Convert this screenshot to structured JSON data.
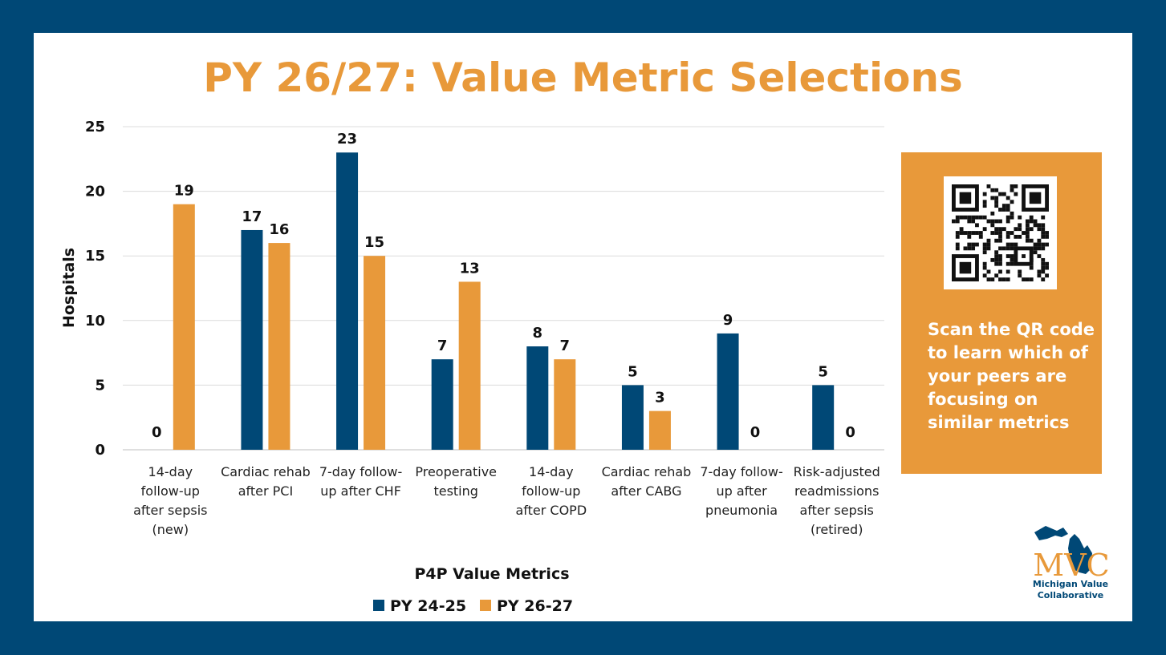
{
  "colors": {
    "background": "#004876",
    "accent": "#E8993A",
    "series_1": "#004876",
    "series_2": "#E8993A"
  },
  "chart_data": {
    "type": "bar",
    "title": "PY 26/27: Value Metric Selections",
    "xlabel": "P4P Value Metrics",
    "ylabel": "Hospitals",
    "ylim": [
      0,
      25
    ],
    "yticks": [
      0,
      5,
      10,
      15,
      20,
      25
    ],
    "grid": true,
    "legend_position": "bottom",
    "categories": [
      [
        "14-day",
        "follow-up",
        "after sepsis",
        "(new)"
      ],
      [
        "Cardiac rehab",
        "after PCI"
      ],
      [
        "7-day follow-",
        "up after CHF"
      ],
      [
        "Preoperative",
        "testing"
      ],
      [
        "14-day",
        "follow-up",
        "after COPD"
      ],
      [
        "Cardiac rehab",
        "after CABG"
      ],
      [
        "7-day follow-",
        "up after",
        "pneumonia"
      ],
      [
        "Risk-adjusted",
        "readmissions",
        "after sepsis",
        "(retired)"
      ]
    ],
    "series": [
      {
        "name": "PY 24-25",
        "color": "#004876",
        "values": [
          0,
          17,
          23,
          7,
          8,
          5,
          9,
          5
        ]
      },
      {
        "name": "PY 26-27",
        "color": "#E8993A",
        "values": [
          19,
          16,
          15,
          13,
          7,
          3,
          0,
          0
        ]
      }
    ]
  },
  "qr_panel": {
    "icon": "qr-code-icon",
    "text": "Scan the QR code to learn which of your peers are focusing on similar metrics"
  },
  "logo": {
    "icon": "michigan-map-icon",
    "mark": "MVC",
    "caption_line1": "Michigan Value",
    "caption_line2": "Collaborative"
  }
}
